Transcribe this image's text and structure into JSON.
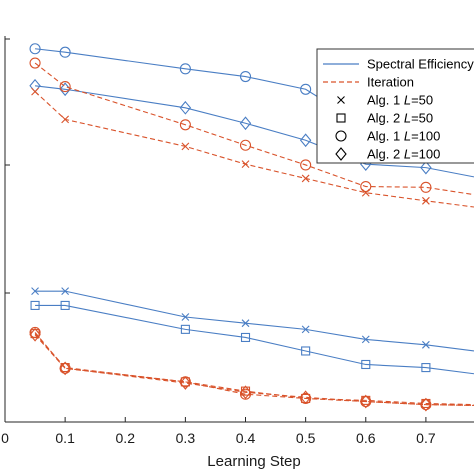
{
  "chart_data": {
    "type": "line",
    "title": "",
    "xlabel": "Learning Step",
    "ylabel": "",
    "xlim": [
      0,
      0.78
    ],
    "ylim": [
      0,
      1
    ],
    "x_ticks": [
      0,
      0.1,
      0.2,
      0.3,
      0.4,
      0.5,
      0.6,
      0.7
    ],
    "x_tick_labels": [
      "0",
      "0.1",
      "0.2",
      "0.3",
      "0.4",
      "0.5",
      "0.6",
      "0.7"
    ],
    "legend": {
      "position": "top-right",
      "entries": [
        {
          "label": "Spectral Efficiency",
          "style": "solid",
          "color": "#4a7ec4"
        },
        {
          "label": "Iteration",
          "style": "dashed",
          "color": "#d9532b"
        },
        {
          "label": "Alg. 1",
          "italic": "L",
          "suffix": "=50",
          "marker": "x"
        },
        {
          "label": "Alg. 2",
          "italic": "L",
          "suffix": "=50",
          "marker": "square"
        },
        {
          "label": "Alg. 1",
          "italic": "L",
          "suffix": "=100",
          "marker": "circle"
        },
        {
          "label": "Alg. 2",
          "italic": "L",
          "suffix": "=100",
          "marker": "diamond"
        }
      ]
    },
    "grid": false,
    "colors": {
      "spectral_efficiency": "#4a7ec4",
      "iteration": "#d9532b"
    },
    "series": [
      {
        "group": "spectral_efficiency",
        "marker": "circle",
        "style": "solid",
        "x": [
          0.05,
          0.1,
          0.3,
          0.4,
          0.5,
          0.6,
          0.7,
          0.78
        ],
        "y": [
          0.967,
          0.958,
          0.915,
          0.895,
          0.862,
          0.765,
          0.759,
          0.735
        ]
      },
      {
        "group": "spectral_efficiency",
        "marker": "diamond",
        "style": "solid",
        "x": [
          0.05,
          0.1,
          0.3,
          0.4,
          0.5,
          0.6,
          0.7,
          0.78
        ],
        "y": [
          0.871,
          0.862,
          0.814,
          0.774,
          0.73,
          0.668,
          0.659,
          0.635
        ]
      },
      {
        "group": "spectral_efficiency",
        "marker": "x",
        "style": "solid",
        "x": [
          0.05,
          0.1,
          0.3,
          0.4,
          0.5,
          0.6,
          0.7,
          0.78
        ],
        "y": [
          0.339,
          0.339,
          0.272,
          0.256,
          0.24,
          0.214,
          0.2,
          0.184
        ]
      },
      {
        "group": "spectral_efficiency",
        "marker": "square",
        "style": "solid",
        "x": [
          0.05,
          0.1,
          0.3,
          0.4,
          0.5,
          0.6,
          0.7,
          0.78
        ],
        "y": [
          0.302,
          0.302,
          0.24,
          0.219,
          0.184,
          0.149,
          0.141,
          0.125
        ]
      },
      {
        "group": "iteration",
        "marker": "circle",
        "style": "dashed",
        "x": [
          0.05,
          0.1,
          0.3,
          0.4,
          0.5,
          0.6,
          0.7,
          0.78
        ],
        "y": [
          0.93,
          0.869,
          0.77,
          0.717,
          0.666,
          0.61,
          0.608,
          0.589
        ]
      },
      {
        "group": "iteration",
        "marker": "x",
        "style": "dashed",
        "x": [
          0.05,
          0.1,
          0.3,
          0.4,
          0.5,
          0.6,
          0.7,
          0.78
        ],
        "y": [
          0.856,
          0.784,
          0.714,
          0.668,
          0.631,
          0.594,
          0.573,
          0.557
        ]
      },
      {
        "group": "iteration",
        "marker": "square",
        "style": "dashed",
        "x": [
          0.05,
          0.1,
          0.3,
          0.4,
          0.5,
          0.6,
          0.7,
          0.78
        ],
        "y": [
          0.229,
          0.141,
          0.104,
          0.08,
          0.061,
          0.056,
          0.048,
          0.045
        ]
      },
      {
        "group": "iteration",
        "marker": "diamond",
        "style": "dashed",
        "x": [
          0.05,
          0.1,
          0.3,
          0.4,
          0.5,
          0.6,
          0.7,
          0.78
        ],
        "y": [
          0.226,
          0.139,
          0.101,
          0.077,
          0.064,
          0.053,
          0.045,
          0.043
        ]
      },
      {
        "group": "iteration",
        "marker": "circle",
        "style": "dashed",
        "x": [
          0.05,
          0.1,
          0.3,
          0.4,
          0.5,
          0.6,
          0.7,
          0.78
        ],
        "y": [
          0.232,
          0.139,
          0.104,
          0.072,
          0.061,
          0.053,
          0.045,
          0.043
        ]
      }
    ]
  }
}
